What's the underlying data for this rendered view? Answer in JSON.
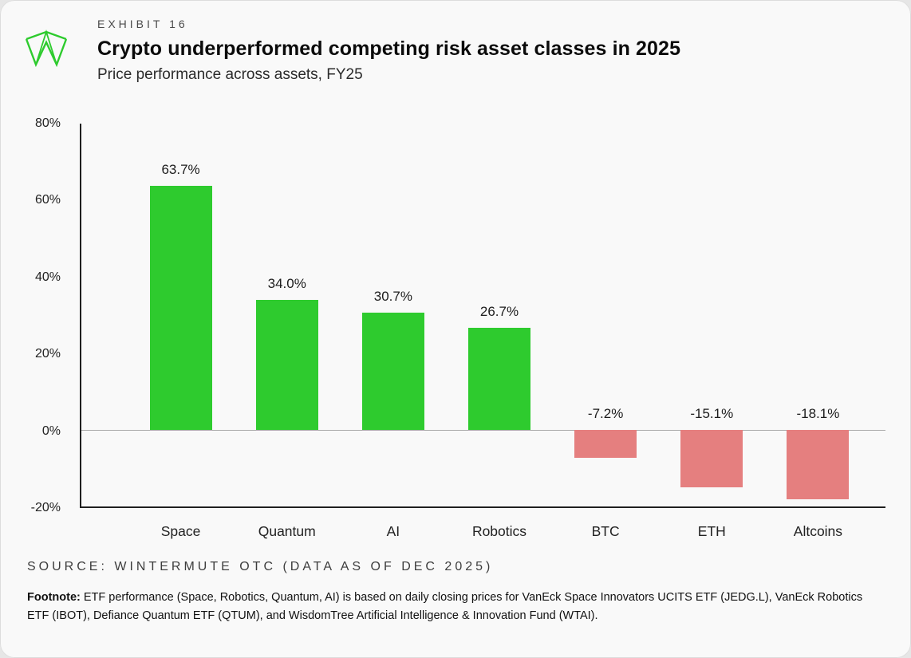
{
  "header": {
    "exhibit_label": "EXHIBIT 16",
    "title": "Crypto underperformed competing risk asset classes in 2025",
    "subtitle": "Price performance across assets, FY25"
  },
  "chart_data": {
    "type": "bar",
    "title": "Crypto underperformed competing risk asset classes in 2025",
    "subtitle": "Price performance across assets, FY25",
    "categories": [
      "Space",
      "Quantum",
      "AI",
      "Robotics",
      "BTC",
      "ETH",
      "Altcoins"
    ],
    "values": [
      63.7,
      34.0,
      30.7,
      26.7,
      -7.2,
      -15.1,
      -18.1
    ],
    "value_labels": [
      "63.7%",
      "34.0%",
      "30.7%",
      "26.7%",
      "-7.2%",
      "-15.1%",
      "-18.1%"
    ],
    "xlabel": "",
    "ylabel": "",
    "ylim": [
      -20,
      80
    ],
    "yticks": [
      80,
      60,
      40,
      20,
      0,
      -20
    ],
    "ytick_labels": [
      "80%",
      "60%",
      "40%",
      "20%",
      "0%",
      "-20%"
    ],
    "grid": false,
    "legend": "none",
    "positive_color": "#2ecb2e",
    "negative_color": "#e57f7f"
  },
  "logo": {
    "name": "wintermute-logo",
    "color": "#2ecb2e"
  },
  "footer": {
    "source": "SOURCE: WINTERMUTE OTC (DATA AS OF DEC 2025)",
    "footnote_label": "Footnote:",
    "footnote_text": " ETF performance (Space, Robotics, Quantum, AI) is based on daily closing prices for VanEck Space Innovators UCITS ETF (JEDG.L), VanEck Robotics ETF (IBOT), Defiance Quantum ETF (QTUM), and WisdomTree Artificial Intelligence & Innovation Fund (WTAI)."
  }
}
